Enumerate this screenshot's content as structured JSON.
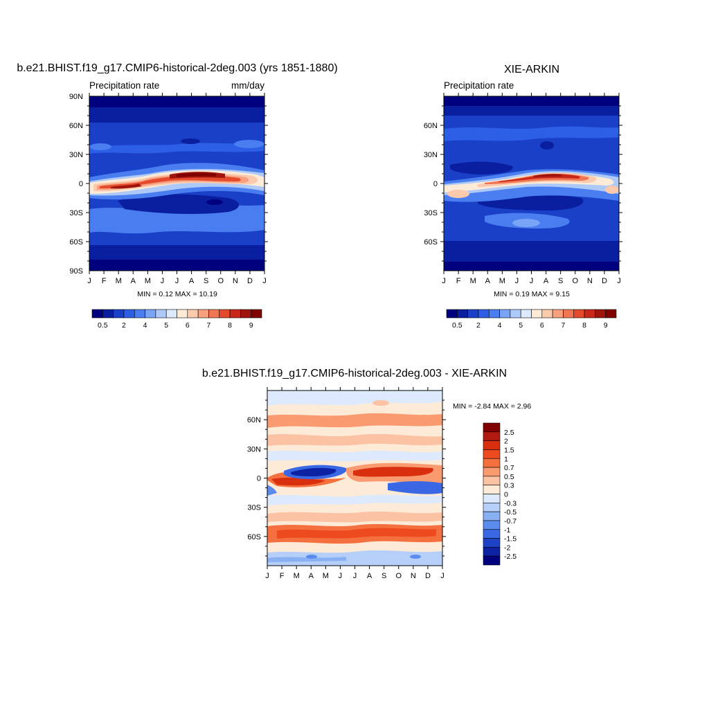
{
  "months": [
    "J",
    "F",
    "M",
    "A",
    "M",
    "J",
    "J",
    "A",
    "S",
    "O",
    "N",
    "D",
    "J"
  ],
  "panels": {
    "model": {
      "title": "b.e21.BHIST.f19_g17.CMIP6-historical-2deg.003 (yrs 1851-1880)",
      "left_label": "Precipitation rate",
      "right_label": "mm/day",
      "stats": "MIN =   0.12 MAX =  10.19",
      "lat_labels": [
        "90N",
        "60N",
        "30N",
        "0",
        "30S",
        "60S",
        "90S"
      ]
    },
    "obs": {
      "title": "XIE-ARKIN",
      "left_label": "Precipitation rate",
      "right_label": "",
      "stats": "MIN =   0.19 MAX =   9.15",
      "lat_labels": [
        "60N",
        "30N",
        "0",
        "30S",
        "60S"
      ]
    },
    "diff": {
      "title": "b.e21.BHIST.f19_g17.CMIP6-historical-2deg.003 - XIE-ARKIN",
      "stats": "MIN =  -2.84 MAX =   2.96",
      "lat_labels": [
        "60N",
        "30N",
        "0",
        "30S",
        "60S"
      ]
    }
  },
  "precip_colorbar": {
    "labels": [
      "0.5",
      "2",
      "4",
      "5",
      "6",
      "7",
      "8",
      "9"
    ],
    "colors": [
      "#00007f",
      "#0a1ea0",
      "#1a40c8",
      "#2d5fe6",
      "#4a7ef0",
      "#7aa4f5",
      "#adc9f8",
      "#dde9fc",
      "#fdebd8",
      "#fbc9ac",
      "#f6a080",
      "#f07654",
      "#e54a2c",
      "#c8281a",
      "#a0140e",
      "#800000"
    ]
  },
  "diff_colorbar": {
    "labels": [
      "2.5",
      "2",
      "1.5",
      "1",
      "0.7",
      "0.5",
      "0.3",
      "0",
      "-0.3",
      "-0.5",
      "-0.7",
      "-1",
      "-1.5",
      "-2",
      "-2.5"
    ],
    "colors": [
      "#800000",
      "#b01a10",
      "#d8300f",
      "#ed4a20",
      "#f5703f",
      "#f99a70",
      "#fbc3a4",
      "#fdebd8",
      "#dde9fc",
      "#b5cff8",
      "#8ab0f4",
      "#5c8bee",
      "#3a68e4",
      "#1e42c6",
      "#0c22a2",
      "#00007f"
    ]
  },
  "chart_data": [
    {
      "type": "heatmap",
      "title": "b.e21.BHIST.f19_g17.CMIP6-historical-2deg.003 (yrs 1851-1880)",
      "subtitle": "Precipitation rate",
      "units": "mm/day",
      "x": [
        "J",
        "F",
        "M",
        "A",
        "M",
        "J",
        "J",
        "A",
        "S",
        "O",
        "N",
        "D",
        "J"
      ],
      "ylabels": [
        "90N",
        "60N",
        "30N",
        "0",
        "30S",
        "60S",
        "90S"
      ],
      "min": 0.12,
      "max": 10.19,
      "rainband": {
        "months": [
          "J",
          "F",
          "M",
          "A",
          "M",
          "J",
          "J",
          "A",
          "S",
          "O",
          "N",
          "D",
          "J"
        ],
        "center_lat": [
          -3,
          -4,
          -5,
          -3,
          1,
          6,
          9,
          10,
          9,
          7,
          5,
          1,
          -3
        ],
        "peak_mm_day": [
          6.5,
          7.5,
          8.5,
          7.5,
          6.5,
          7.5,
          9,
          9.5,
          9,
          8,
          7,
          6.5,
          6.5
        ]
      }
    },
    {
      "type": "heatmap",
      "title": "XIE-ARKIN",
      "subtitle": "Precipitation rate",
      "x": [
        "J",
        "F",
        "M",
        "A",
        "M",
        "J",
        "J",
        "A",
        "S",
        "O",
        "N",
        "D",
        "J"
      ],
      "ylabels": [
        "60N",
        "30N",
        "0",
        "30S",
        "60S"
      ],
      "min": 0.19,
      "max": 9.15,
      "rainband": {
        "months": [
          "J",
          "F",
          "M",
          "A",
          "M",
          "J",
          "J",
          "A",
          "S",
          "O",
          "N",
          "D",
          "J"
        ],
        "center_lat": [
          -3,
          -4,
          -3,
          0,
          3,
          6,
          8,
          9,
          9,
          7,
          5,
          2,
          -3
        ],
        "peak_mm_day": [
          6,
          6,
          6,
          6.5,
          7,
          7.5,
          8,
          8.5,
          8.5,
          8,
          7,
          6.5,
          6
        ]
      }
    },
    {
      "type": "heatmap",
      "title": "b.e21.BHIST.f19_g17.CMIP6-historical-2deg.003 - XIE-ARKIN",
      "x": [
        "J",
        "F",
        "M",
        "A",
        "M",
        "J",
        "J",
        "A",
        "S",
        "O",
        "N",
        "D",
        "J"
      ],
      "ylabels": [
        "60N",
        "30N",
        "0",
        "30S",
        "60S"
      ],
      "min": -2.84,
      "max": 2.96,
      "features": {
        "equatorial_dry_bias": -2.5,
        "south_equator_wet_bias": 2.0,
        "midlat_south_wet_bias": 1.5
      }
    }
  ]
}
